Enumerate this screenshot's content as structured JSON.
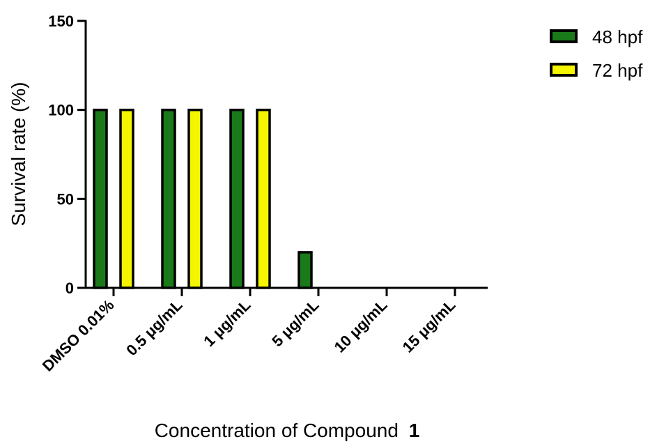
{
  "chart_data": {
    "type": "bar",
    "categories": [
      "DMSO 0.01%",
      "0.5 μg/mL",
      "1 μg/mL",
      "5 μg/mL",
      "10 μg/mL",
      "15 μg/mL"
    ],
    "series": [
      {
        "name": "48 hpf",
        "values": [
          100,
          100,
          100,
          20,
          0,
          0
        ],
        "color": "#1a7a1a"
      },
      {
        "name": "72 hpf",
        "values": [
          100,
          100,
          100,
          0,
          0,
          0
        ],
        "color": "#f5f500"
      }
    ],
    "ylabel": "Survival rate (%)",
    "xlabel_main": "Concentration of Compound",
    "xlabel_bold": "1",
    "ylim": [
      0,
      150
    ],
    "yticks": [
      0,
      50,
      100,
      150
    ],
    "legend_position": "top-right",
    "grid": false
  }
}
